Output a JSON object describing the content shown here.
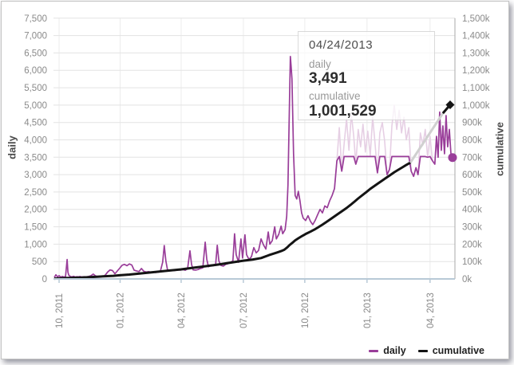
{
  "tooltip": {
    "date": "04/24/2013",
    "daily_label": "daily",
    "daily_value": "3,491",
    "cumulative_label": "cumulative",
    "cumulative_value": "1,001,529"
  },
  "legend": {
    "daily_label": "daily",
    "cumulative_label": "cumulative"
  },
  "axes": {
    "left_title": "daily",
    "right_title": "cumulative",
    "left_ticks": [
      "0",
      "500",
      "1,000",
      "1,500",
      "2,000",
      "2,500",
      "3,000",
      "3,500",
      "4,000",
      "4,500",
      "5,000",
      "5,500",
      "6,000",
      "6,500",
      "7,000",
      "7,500"
    ],
    "right_ticks": [
      "0k",
      "100k",
      "200k",
      "300k",
      "400k",
      "500k",
      "600k",
      "700k",
      "800k",
      "900k",
      "1,000k",
      "1,100k",
      "1,200k",
      "1,300k",
      "1,400k",
      "1,500k"
    ],
    "x_ticks": [
      {
        "label": "10, 2011",
        "f": 0.014
      },
      {
        "label": "01, 2012",
        "f": 0.166
      },
      {
        "label": "04, 2012",
        "f": 0.318
      },
      {
        "label": "07, 2012",
        "f": 0.473
      },
      {
        "label": "10, 2012",
        "f": 0.626
      },
      {
        "label": "01, 2013",
        "f": 0.781
      },
      {
        "label": "04, 2013",
        "f": 0.938
      }
    ]
  },
  "colors": {
    "daily": "#993d99",
    "daily_faded": "#e6cfe4",
    "cumulative": "#141414",
    "cumulative_faded": "#d0d0d0",
    "grid": "#e3e3e3",
    "grid_vertical": "#ececec",
    "axis_line": "#b8c9d6",
    "right_border": "#a8a8a8",
    "tick_text": "#8a8a8a"
  },
  "chart_data": {
    "type": "line",
    "title": "",
    "xlabel": "",
    "ylabel_left": "daily",
    "ylabel_right": "cumulative",
    "ylim_left": [
      0,
      7500
    ],
    "ylim_right_thousands": [
      0,
      1500
    ],
    "grid": true,
    "legend_position": "bottom-right",
    "highlight": {
      "date": "04/24/2013",
      "daily": 3491,
      "cumulative": 1001529,
      "dot_f": 0.994,
      "diamond_f": 0.988
    },
    "series": [
      {
        "name": "daily",
        "axis": "left",
        "faded_range_f": [
          0.7,
          0.979
        ],
        "cap_range_f": [
          0.703,
          0.9525
        ],
        "cap_value": 3520,
        "points": [
          [
            0.002,
            40
          ],
          [
            0.006,
            120
          ],
          [
            0.01,
            60
          ],
          [
            0.014,
            95
          ],
          [
            0.018,
            50
          ],
          [
            0.022,
            70
          ],
          [
            0.026,
            55
          ],
          [
            0.03,
            65
          ],
          [
            0.034,
            560
          ],
          [
            0.036,
            200
          ],
          [
            0.038,
            110
          ],
          [
            0.042,
            70
          ],
          [
            0.046,
            60
          ],
          [
            0.05,
            75
          ],
          [
            0.054,
            55
          ],
          [
            0.058,
            65
          ],
          [
            0.062,
            60
          ],
          [
            0.066,
            70
          ],
          [
            0.07,
            55
          ],
          [
            0.076,
            65
          ],
          [
            0.082,
            60
          ],
          [
            0.087,
            70
          ],
          [
            0.093,
            90
          ],
          [
            0.099,
            140
          ],
          [
            0.105,
            85
          ],
          [
            0.111,
            70
          ],
          [
            0.117,
            80
          ],
          [
            0.123,
            75
          ],
          [
            0.129,
            110
          ],
          [
            0.135,
            200
          ],
          [
            0.141,
            260
          ],
          [
            0.147,
            240
          ],
          [
            0.153,
            150
          ],
          [
            0.159,
            230
          ],
          [
            0.165,
            310
          ],
          [
            0.171,
            395
          ],
          [
            0.177,
            420
          ],
          [
            0.183,
            380
          ],
          [
            0.189,
            430
          ],
          [
            0.195,
            400
          ],
          [
            0.201,
            250
          ],
          [
            0.207,
            230
          ],
          [
            0.213,
            210
          ],
          [
            0.219,
            300
          ],
          [
            0.225,
            220
          ],
          [
            0.231,
            200
          ],
          [
            0.237,
            210
          ],
          [
            0.243,
            190
          ],
          [
            0.249,
            200
          ],
          [
            0.254,
            185
          ],
          [
            0.26,
            195
          ],
          [
            0.266,
            210
          ],
          [
            0.272,
            480
          ],
          [
            0.276,
            960
          ],
          [
            0.28,
            520
          ],
          [
            0.284,
            260
          ],
          [
            0.292,
            250
          ],
          [
            0.298,
            235
          ],
          [
            0.304,
            245
          ],
          [
            0.31,
            260
          ],
          [
            0.316,
            255
          ],
          [
            0.322,
            270
          ],
          [
            0.328,
            250
          ],
          [
            0.334,
            290
          ],
          [
            0.34,
            810
          ],
          [
            0.344,
            420
          ],
          [
            0.348,
            260
          ],
          [
            0.354,
            255
          ],
          [
            0.36,
            270
          ],
          [
            0.366,
            300
          ],
          [
            0.372,
            320
          ],
          [
            0.378,
            1060
          ],
          [
            0.382,
            560
          ],
          [
            0.386,
            350
          ],
          [
            0.392,
            400
          ],
          [
            0.398,
            380
          ],
          [
            0.404,
            420
          ],
          [
            0.408,
            970
          ],
          [
            0.412,
            520
          ],
          [
            0.417,
            390
          ],
          [
            0.423,
            370
          ],
          [
            0.429,
            420
          ],
          [
            0.435,
            440
          ],
          [
            0.441,
            480
          ],
          [
            0.447,
            520
          ],
          [
            0.451,
            1300
          ],
          [
            0.455,
            700
          ],
          [
            0.461,
            480
          ],
          [
            0.467,
            1150
          ],
          [
            0.471,
            600
          ],
          [
            0.477,
            1270
          ],
          [
            0.481,
            700
          ],
          [
            0.487,
            560
          ],
          [
            0.493,
            640
          ],
          [
            0.499,
            900
          ],
          [
            0.505,
            750
          ],
          [
            0.511,
            820
          ],
          [
            0.517,
            1150
          ],
          [
            0.523,
            980
          ],
          [
            0.529,
            860
          ],
          [
            0.535,
            1350
          ],
          [
            0.539,
            1000
          ],
          [
            0.545,
            1100
          ],
          [
            0.551,
            1500
          ],
          [
            0.555,
            1150
          ],
          [
            0.561,
            1280
          ],
          [
            0.567,
            1520
          ],
          [
            0.571,
            1300
          ],
          [
            0.577,
            1420
          ],
          [
            0.581,
            1800
          ],
          [
            0.584,
            2700
          ],
          [
            0.588,
            5200
          ],
          [
            0.59,
            6400
          ],
          [
            0.592,
            6100
          ],
          [
            0.594,
            5750
          ],
          [
            0.598,
            3600
          ],
          [
            0.602,
            2400
          ],
          [
            0.606,
            2300
          ],
          [
            0.61,
            2520
          ],
          [
            0.614,
            2250
          ],
          [
            0.618,
            1900
          ],
          [
            0.622,
            1750
          ],
          [
            0.628,
            1680
          ],
          [
            0.634,
            1820
          ],
          [
            0.64,
            1660
          ],
          [
            0.646,
            1560
          ],
          [
            0.652,
            1690
          ],
          [
            0.658,
            1850
          ],
          [
            0.664,
            2000
          ],
          [
            0.67,
            1900
          ],
          [
            0.676,
            2100
          ],
          [
            0.682,
            2050
          ],
          [
            0.688,
            2250
          ],
          [
            0.694,
            2400
          ],
          [
            0.7,
            2600
          ],
          [
            0.706,
            3400
          ],
          [
            0.712,
            4350
          ],
          [
            0.718,
            3100
          ],
          [
            0.724,
            3900
          ],
          [
            0.73,
            4600
          ],
          [
            0.736,
            3700
          ],
          [
            0.742,
            4750
          ],
          [
            0.748,
            4100
          ],
          [
            0.753,
            3300
          ],
          [
            0.759,
            4300
          ],
          [
            0.765,
            3800
          ],
          [
            0.771,
            4450
          ],
          [
            0.777,
            3650
          ],
          [
            0.783,
            4250
          ],
          [
            0.789,
            3550
          ],
          [
            0.795,
            4650
          ],
          [
            0.801,
            3900
          ],
          [
            0.807,
            3050
          ],
          [
            0.813,
            4200
          ],
          [
            0.819,
            4500
          ],
          [
            0.825,
            3950
          ],
          [
            0.831,
            3000
          ],
          [
            0.837,
            3150
          ],
          [
            0.843,
            4400
          ],
          [
            0.849,
            5000
          ],
          [
            0.855,
            4300
          ],
          [
            0.861,
            4850
          ],
          [
            0.867,
            4200
          ],
          [
            0.873,
            4650
          ],
          [
            0.879,
            4000
          ],
          [
            0.885,
            4350
          ],
          [
            0.891,
            3100
          ],
          [
            0.897,
            2950
          ],
          [
            0.903,
            3200
          ],
          [
            0.908,
            3000
          ],
          [
            0.914,
            4200
          ],
          [
            0.92,
            3850
          ],
          [
            0.926,
            4300
          ],
          [
            0.932,
            3500
          ],
          [
            0.938,
            4100
          ],
          [
            0.944,
            3400
          ],
          [
            0.95,
            3300
          ],
          [
            0.954,
            4100
          ],
          [
            0.958,
            3500
          ],
          [
            0.962,
            4800
          ],
          [
            0.966,
            3700
          ],
          [
            0.97,
            4400
          ],
          [
            0.974,
            3600
          ],
          [
            0.978,
            4700
          ],
          [
            0.982,
            3800
          ],
          [
            0.986,
            4300
          ],
          [
            0.99,
            3600
          ],
          [
            0.994,
            3491
          ]
        ]
      },
      {
        "name": "cumulative",
        "axis": "right",
        "faded_range_f": [
          0.889,
          0.97
        ],
        "points_thousands": [
          [
            0.002,
            2
          ],
          [
            0.03,
            5
          ],
          [
            0.07,
            8
          ],
          [
            0.109,
            13
          ],
          [
            0.149,
            18
          ],
          [
            0.165,
            21
          ],
          [
            0.189,
            25
          ],
          [
            0.219,
            32
          ],
          [
            0.249,
            39
          ],
          [
            0.278,
            46
          ],
          [
            0.318,
            55
          ],
          [
            0.348,
            64
          ],
          [
            0.378,
            73
          ],
          [
            0.408,
            82
          ],
          [
            0.437,
            92
          ],
          [
            0.473,
            105
          ],
          [
            0.497,
            112
          ],
          [
            0.517,
            120
          ],
          [
            0.537,
            137
          ],
          [
            0.557,
            152
          ],
          [
            0.567,
            160
          ],
          [
            0.575,
            168
          ],
          [
            0.583,
            183
          ],
          [
            0.588,
            195
          ],
          [
            0.594,
            206
          ],
          [
            0.602,
            222
          ],
          [
            0.61,
            234
          ],
          [
            0.62,
            248
          ],
          [
            0.63,
            261
          ],
          [
            0.64,
            272
          ],
          [
            0.65,
            284
          ],
          [
            0.66,
            298
          ],
          [
            0.67,
            312
          ],
          [
            0.68,
            328
          ],
          [
            0.69,
            344
          ],
          [
            0.7,
            360
          ],
          [
            0.71,
            376
          ],
          [
            0.72,
            392
          ],
          [
            0.73,
            408
          ],
          [
            0.74,
            426
          ],
          [
            0.75,
            445
          ],
          [
            0.759,
            463
          ],
          [
            0.769,
            481
          ],
          [
            0.779,
            499
          ],
          [
            0.789,
            518
          ],
          [
            0.799,
            534
          ],
          [
            0.809,
            550
          ],
          [
            0.819,
            566
          ],
          [
            0.829,
            582
          ],
          [
            0.839,
            598
          ],
          [
            0.849,
            614
          ],
          [
            0.859,
            628
          ],
          [
            0.869,
            642
          ],
          [
            0.879,
            656
          ],
          [
            0.889,
            669
          ],
          [
            0.97,
            953
          ],
          [
            0.988,
            1001.5
          ]
        ]
      }
    ]
  }
}
